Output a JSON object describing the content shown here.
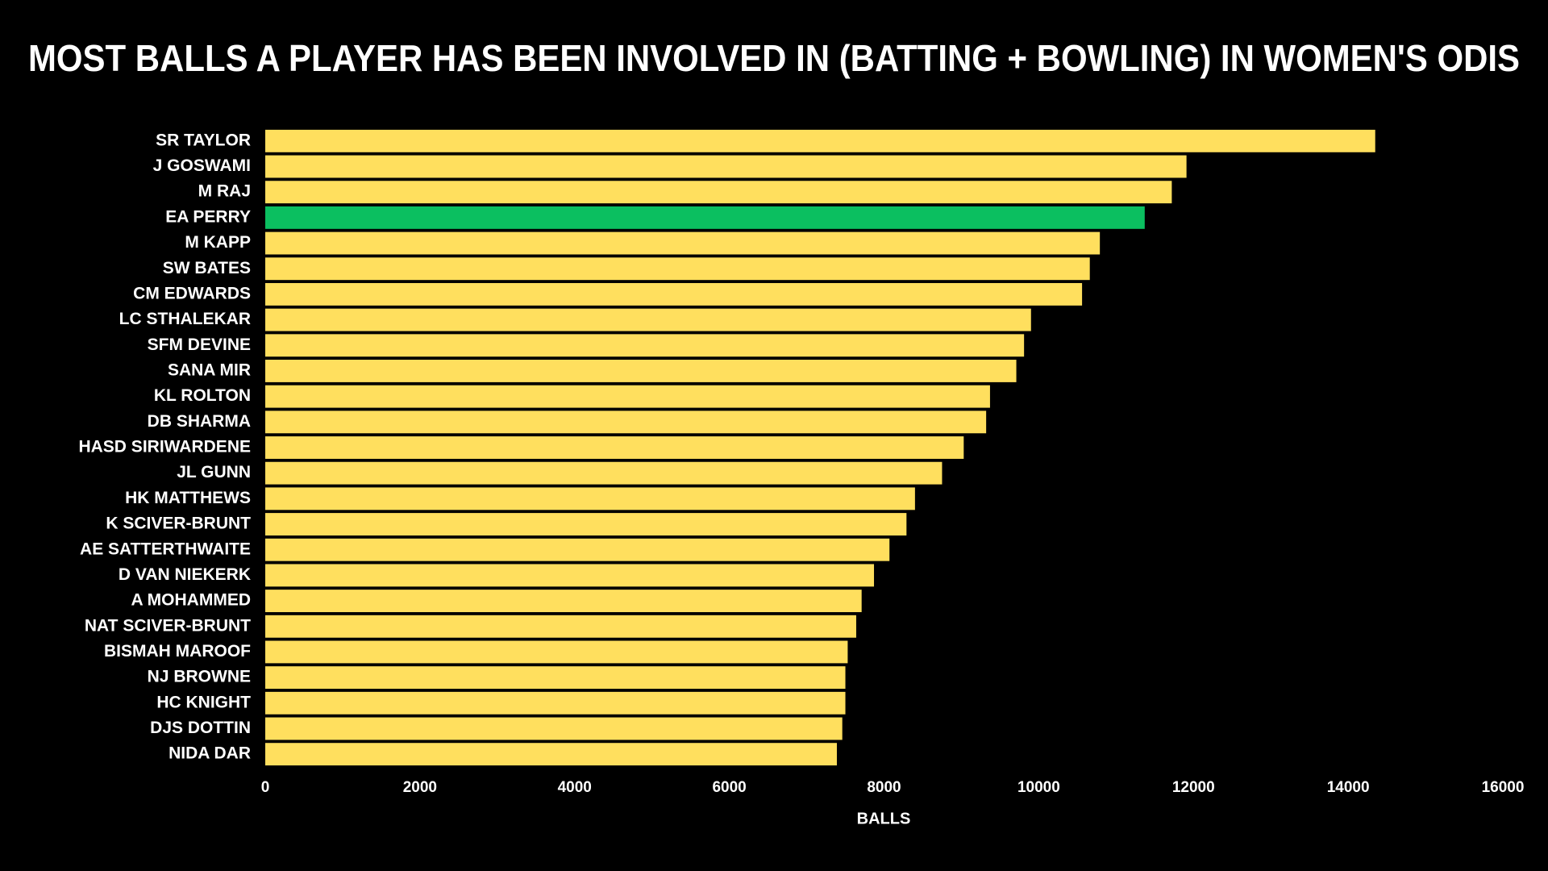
{
  "chart_data": {
    "type": "barh",
    "title": "MOST BALLS A PLAYER HAS BEEN INVOLVED IN (BATTING + BOWLING) IN WOMEN'S ODIS",
    "xlabel": "BALLS",
    "categories": [
      "SR TAYLOR",
      "J GOSWAMI",
      "M RAJ",
      "EA PERRY",
      "M KAPP",
      "SW BATES",
      "CM EDWARDS",
      "LC STHALEKAR",
      "SFM DEVINE",
      "SANA MIR",
      "KL ROLTON",
      "DB SHARMA",
      "HASD SIRIWARDENE",
      "JL GUNN",
      "HK MATTHEWS",
      "K SCIVER-BRUNT",
      "AE SATTERTHWAITE",
      "D VAN NIEKERK",
      "A MOHAMMED",
      "NAT SCIVER-BRUNT",
      "BISMAH MAROOF",
      "NJ BROWNE",
      "HC KNIGHT",
      "DJS DOTTIN",
      "NIDA DAR"
    ],
    "values": [
      14350,
      11910,
      11720,
      11370,
      10790,
      10660,
      10560,
      9900,
      9810,
      9710,
      9370,
      9320,
      9030,
      8750,
      8400,
      8290,
      8070,
      7870,
      7710,
      7640,
      7530,
      7500,
      7500,
      7460,
      7390
    ],
    "colors": [
      "#ffdf5e",
      "#ffdf5e",
      "#ffdf5e",
      "#0bbf60",
      "#ffdf5e",
      "#ffdf5e",
      "#ffdf5e",
      "#ffdf5e",
      "#ffdf5e",
      "#ffdf5e",
      "#ffdf5e",
      "#ffdf5e",
      "#ffdf5e",
      "#ffdf5e",
      "#ffdf5e",
      "#ffdf5e",
      "#ffdf5e",
      "#ffdf5e",
      "#ffdf5e",
      "#ffdf5e",
      "#ffdf5e",
      "#ffdf5e",
      "#ffdf5e",
      "#ffdf5e",
      "#ffdf5e"
    ],
    "xlim": [
      0,
      16000
    ],
    "xticks": [
      0,
      2000,
      4000,
      6000,
      8000,
      10000,
      12000,
      14000,
      16000
    ],
    "grid": false
  }
}
